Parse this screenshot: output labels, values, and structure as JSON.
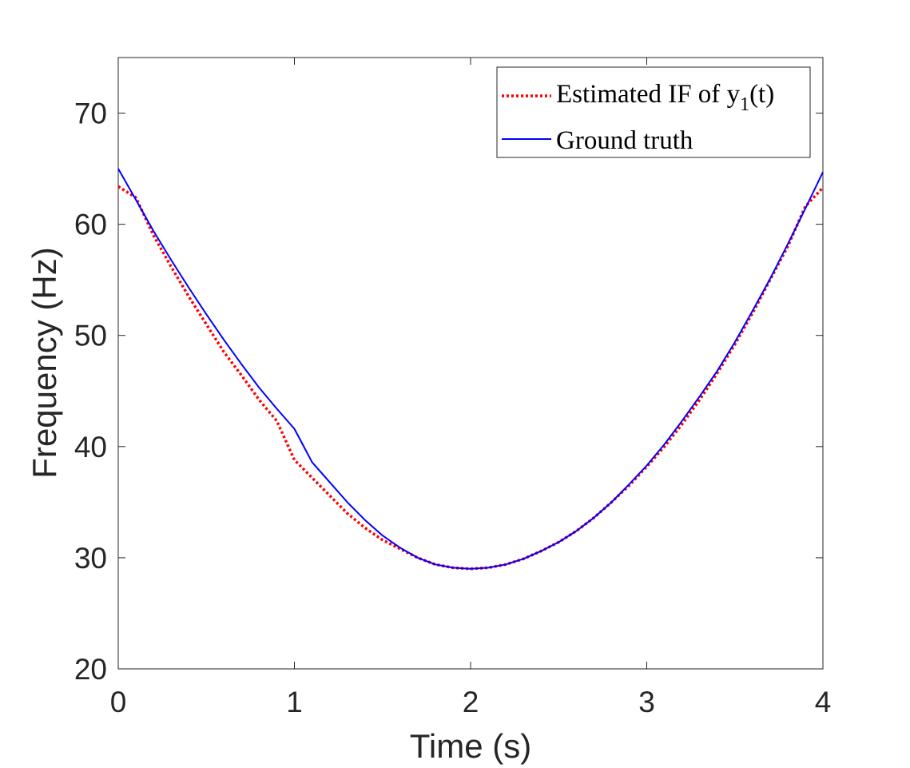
{
  "chart_data": {
    "type": "line",
    "xlabel": "Time (s)",
    "ylabel": "Frequency (Hz)",
    "xlim": [
      0,
      4
    ],
    "ylim": [
      20,
      75
    ],
    "xticks": [
      0,
      1,
      2,
      3,
      4
    ],
    "yticks": [
      20,
      30,
      40,
      50,
      60,
      70
    ],
    "grid": false,
    "legend": {
      "placement": "top-right",
      "entries": [
        {
          "text": "Estimated IF of ",
          "sub_y": "y",
          "sub": "1",
          "tail": "(t)"
        },
        {
          "text": "Ground truth"
        }
      ]
    },
    "series": [
      {
        "style": "dotted",
        "color": "#ff0000",
        "x": [
          0,
          0.1,
          0.2,
          0.3,
          0.4,
          0.5,
          0.6,
          0.7,
          0.8,
          0.9,
          1.0,
          1.1,
          1.2,
          1.3,
          1.4,
          1.5,
          1.6,
          1.7,
          1.8,
          1.9,
          2.0,
          2.1,
          2.2,
          2.3,
          2.4,
          2.5,
          2.6,
          2.7,
          2.8,
          2.9,
          3.0,
          3.1,
          3.2,
          3.3,
          3.4,
          3.5,
          3.6,
          3.7,
          3.8,
          3.9,
          4.0
        ],
        "y": [
          63.4,
          62.4,
          59.0,
          56.2,
          53.5,
          51.0,
          48.5,
          46.4,
          44.2,
          42.3,
          38.8,
          37.2,
          35.6,
          34.0,
          32.7,
          31.6,
          30.8,
          30.0,
          29.4,
          29.1,
          29.0,
          29.1,
          29.4,
          29.9,
          30.6,
          31.4,
          32.4,
          33.6,
          35.0,
          36.5,
          38.2,
          40.0,
          42.0,
          44.2,
          46.6,
          49.2,
          52.0,
          55.0,
          58.0,
          61.6,
          63.3
        ]
      },
      {
        "style": "solid",
        "color": "#0000ff",
        "x": [
          0,
          0.1,
          0.2,
          0.3,
          0.4,
          0.5,
          0.6,
          0.7,
          0.8,
          0.9,
          1.0,
          1.1,
          1.2,
          1.3,
          1.4,
          1.5,
          1.6,
          1.7,
          1.8,
          1.9,
          2.0,
          2.1,
          2.2,
          2.3,
          2.4,
          2.5,
          2.6,
          2.7,
          2.8,
          2.9,
          3.0,
          3.1,
          3.2,
          3.3,
          3.4,
          3.5,
          3.6,
          3.7,
          3.8,
          3.9,
          4.0
        ],
        "y": [
          65.0,
          62.2,
          59.4,
          56.8,
          54.3,
          51.9,
          49.6,
          47.4,
          45.3,
          43.4,
          41.6,
          38.6,
          36.8,
          35.0,
          33.4,
          32.0,
          30.9,
          30.0,
          29.4,
          29.1,
          29.0,
          29.1,
          29.4,
          29.9,
          30.6,
          31.4,
          32.4,
          33.6,
          35.0,
          36.6,
          38.3,
          40.2,
          42.3,
          44.5,
          46.8,
          49.4,
          52.2,
          55.1,
          58.2,
          61.4,
          64.7
        ]
      }
    ]
  }
}
